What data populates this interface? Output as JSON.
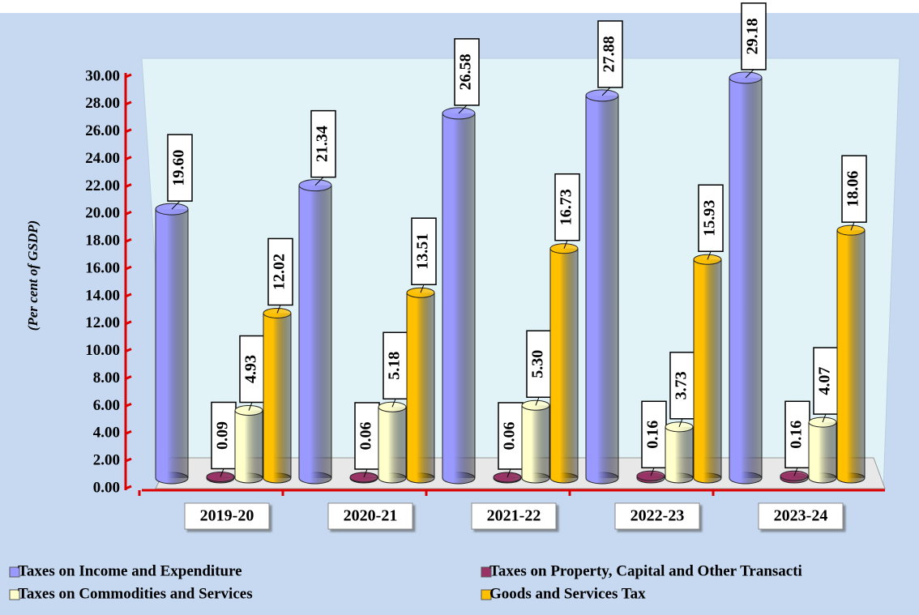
{
  "chart_data": {
    "type": "bar3d",
    "y_label": "(Per cent of GSDP)",
    "categories": [
      "2019-20",
      "2020-21",
      "2021-22",
      "2022-23",
      "2023-24"
    ],
    "series": [
      {
        "name": "Taxes on Income and Expenditure",
        "color": "#9999ff",
        "values": [
          19.6,
          21.34,
          26.58,
          27.88,
          29.18
        ],
        "value_labels": [
          "19.60",
          "21.34",
          "26.58",
          "27.88",
          "29.18"
        ]
      },
      {
        "name": "Taxes on Property, Capital and Other Transacti",
        "color": "#993366",
        "values": [
          0.09,
          0.06,
          0.06,
          0.16,
          0.16
        ],
        "value_labels": [
          "0.09",
          "0.06",
          "0.06",
          "0.16",
          "0.16"
        ]
      },
      {
        "name": "Taxes on Commodities and Services",
        "color": "#ffffcc",
        "values": [
          4.93,
          5.18,
          5.3,
          3.73,
          4.07
        ],
        "value_labels": [
          "4.93",
          "5.18",
          "5.30",
          "3.73",
          "4.07"
        ]
      },
      {
        "name": "Goods and Services Tax",
        "color": "#ffc000",
        "values": [
          12.02,
          13.51,
          16.73,
          15.93,
          18.06
        ],
        "value_labels": [
          "12.02",
          "13.51",
          "16.73",
          "15.93",
          "18.06"
        ]
      }
    ],
    "ylim": [
      0,
      30
    ],
    "yticks": [
      {
        "value": 0,
        "label": "0.00"
      },
      {
        "value": 2,
        "label": "2.00"
      },
      {
        "value": 4,
        "label": "4.00"
      },
      {
        "value": 6,
        "label": "6.00"
      },
      {
        "value": 8,
        "label": "8.00"
      },
      {
        "value": 10,
        "label": "10.00"
      },
      {
        "value": 12,
        "label": "12.00"
      },
      {
        "value": 14,
        "label": "14.00"
      },
      {
        "value": 16,
        "label": "16.00"
      },
      {
        "value": 18,
        "label": "18.00"
      },
      {
        "value": 20,
        "label": "20.00"
      },
      {
        "value": 22,
        "label": "22.00"
      },
      {
        "value": 24,
        "label": "24.00"
      },
      {
        "value": 26,
        "label": "26.00"
      },
      {
        "value": 28,
        "label": "28.00"
      },
      {
        "value": 30,
        "label": "30.00"
      }
    ],
    "legend": "bottom"
  }
}
